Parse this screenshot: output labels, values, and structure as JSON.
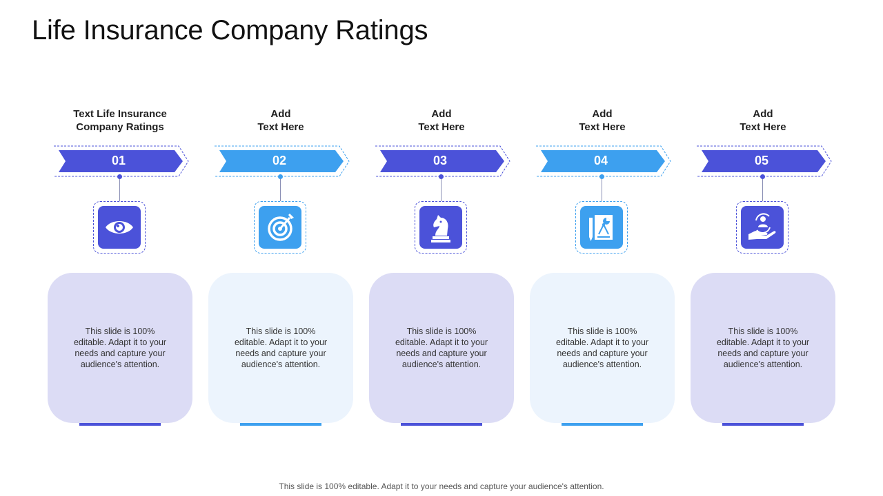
{
  "title": "Life Insurance Company Ratings",
  "colors": {
    "dark": "#4b52d9",
    "light": "#3da0ef",
    "card_dark": "#dcdcf5",
    "card_light": "#ecf4fd"
  },
  "steps": [
    {
      "heading": [
        "Text Life Insurance",
        "Company Ratings"
      ],
      "number": "01",
      "icon": "eye-icon",
      "text": "This slide is 100% editable. Adapt it to your needs and capture your audience's attention.",
      "tone": "dark"
    },
    {
      "heading": [
        "Add",
        "Text Here"
      ],
      "number": "02",
      "icon": "target-icon",
      "text": "This slide is 100% editable. Adapt it to your needs and capture your audience's attention.",
      "tone": "light"
    },
    {
      "heading": [
        "Add",
        "Text Here"
      ],
      "number": "03",
      "icon": "chess-knight-icon",
      "text": "This slide is 100% editable. Adapt it to your needs and capture your audience's attention.",
      "tone": "dark"
    },
    {
      "heading": [
        "Add",
        "Text Here"
      ],
      "number": "04",
      "icon": "report-chart-icon",
      "text": "This slide is 100% editable. Adapt it to your needs and capture your audience's attention.",
      "tone": "light"
    },
    {
      "heading": [
        "Add",
        "Text Here"
      ],
      "number": "05",
      "icon": "hand-person-icon",
      "text": "This slide is 100% editable. Adapt it to your needs and capture your audience's attention.",
      "tone": "dark"
    }
  ],
  "footer": "This slide is 100% editable. Adapt it to your needs and capture your audience's attention."
}
